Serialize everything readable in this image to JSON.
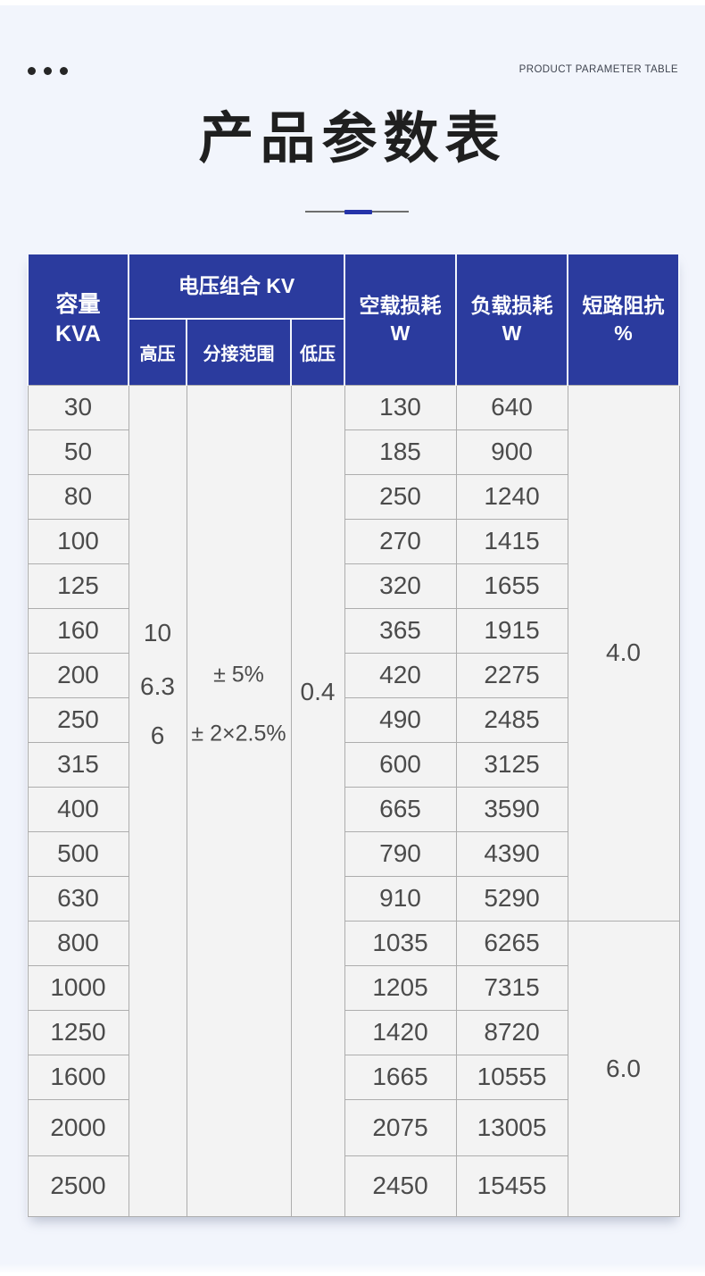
{
  "page": {
    "eyebrow": "PRODUCT PARAMETER TABLE",
    "title": "产品参数表"
  },
  "colors": {
    "header_bg": "#2b3b9e",
    "accent_blue": "#2533a9",
    "page_bg": "#f2f5fc",
    "cell_bg": "#f3f3f3",
    "grid_line": "#adadad",
    "body_text": "#4b4b4b",
    "title_text": "#1f1f1f"
  },
  "table": {
    "header": {
      "capacity_line1": "容量",
      "capacity_line2": "KVA",
      "voltage_group": "电压组合 KV",
      "sub_hv": "高压",
      "sub_tap": "分接范围",
      "sub_lv": "低压",
      "no_load_line1": "空载损耗",
      "no_load_line2": "W",
      "load_line1": "负载损耗",
      "load_line2": "W",
      "impedance_line1": "短路阻抗",
      "impedance_line2": "%"
    },
    "merged": {
      "hv_values": [
        "10",
        "6.3",
        "6"
      ],
      "tap_values": [
        "± 5%",
        "± 2×2.5%"
      ],
      "lv_value": "0.4"
    },
    "impedance_groups": [
      {
        "value": "4.0",
        "rows": 12
      },
      {
        "value": "6.0",
        "rows": 6
      }
    ],
    "rows": [
      {
        "kva": "30",
        "no_load": "130",
        "load": "640"
      },
      {
        "kva": "50",
        "no_load": "185",
        "load": "900"
      },
      {
        "kva": "80",
        "no_load": "250",
        "load": "1240"
      },
      {
        "kva": "100",
        "no_load": "270",
        "load": "1415"
      },
      {
        "kva": "125",
        "no_load": "320",
        "load": "1655"
      },
      {
        "kva": "160",
        "no_load": "365",
        "load": "1915"
      },
      {
        "kva": "200",
        "no_load": "420",
        "load": "2275"
      },
      {
        "kva": "250",
        "no_load": "490",
        "load": "2485"
      },
      {
        "kva": "315",
        "no_load": "600",
        "load": "3125"
      },
      {
        "kva": "400",
        "no_load": "665",
        "load": "3590"
      },
      {
        "kva": "500",
        "no_load": "790",
        "load": "4390"
      },
      {
        "kva": "630",
        "no_load": "910",
        "load": "5290"
      },
      {
        "kva": "800",
        "no_load": "1035",
        "load": "6265"
      },
      {
        "kva": "1000",
        "no_load": "1205",
        "load": "7315"
      },
      {
        "kva": "1250",
        "no_load": "1420",
        "load": "8720"
      },
      {
        "kva": "1600",
        "no_load": "1665",
        "load": "10555"
      },
      {
        "kva": "2000",
        "no_load": "2075",
        "load": "13005"
      },
      {
        "kva": "2500",
        "no_load": "2450",
        "load": "15455"
      }
    ]
  }
}
